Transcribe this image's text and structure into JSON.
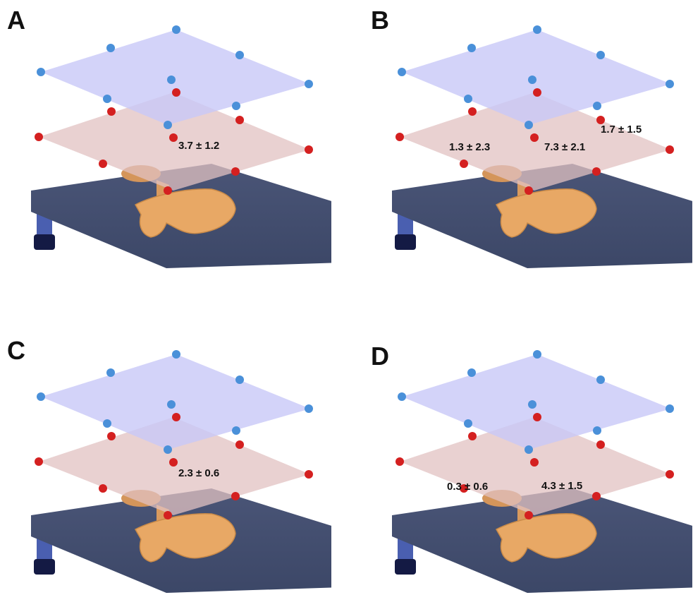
{
  "colors": {
    "upper_plane_fill": "#c8c8f8",
    "lower_plane_fill": "#e2c2c2",
    "upper_point": "#4a90d9",
    "lower_point": "#d42020",
    "table_top": "#3c4767",
    "table_leg": "#4a5fb0",
    "patient_body": "#e8a865"
  },
  "icons": {
    "upper_point": "blue-dot-icon",
    "lower_point": "red-dot-icon",
    "patient": "patient-body-icon",
    "table": "treatment-couch-icon"
  },
  "panels": [
    {
      "letter": "A",
      "labels": [
        "3.7 ± 1.2"
      ]
    },
    {
      "letter": "B",
      "labels": [
        "1.3 ± 2.3",
        "7.3 ± 2.1",
        "1.7 ± 1.5"
      ]
    },
    {
      "letter": "C",
      "labels": [
        "2.3 ± 0.6"
      ]
    },
    {
      "letter": "D",
      "labels": [
        "0.3 ± 0.6",
        "4.3 ± 1.5"
      ]
    }
  ]
}
